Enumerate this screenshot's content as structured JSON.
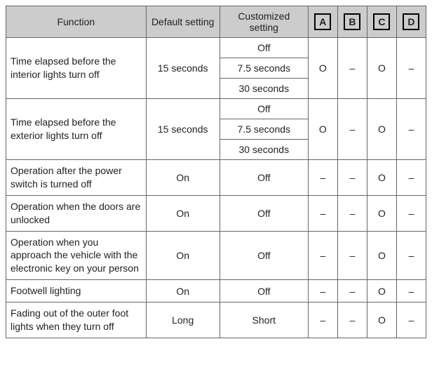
{
  "headers": {
    "func": "Function",
    "def": "Default setting",
    "cust": "Customized setting",
    "a": "A",
    "b": "B",
    "c": "C",
    "d": "D"
  },
  "marks": {
    "circle": "O",
    "dash": "–"
  },
  "rows": [
    {
      "func": "Time elapsed before the interior lights turn off",
      "def": "15 seconds",
      "cust": [
        "Off",
        "7.5 seconds",
        "30 seconds"
      ],
      "a": "O",
      "b": "–",
      "c": "O",
      "d": "–"
    },
    {
      "func": "Time elapsed before the exterior lights turn off",
      "def": "15 seconds",
      "cust": [
        "Off",
        "7.5 seconds",
        "30 seconds"
      ],
      "a": "O",
      "b": "–",
      "c": "O",
      "d": "–"
    },
    {
      "func": "Operation after the power switch is turned off",
      "def": "On",
      "cust": [
        "Off"
      ],
      "a": "–",
      "b": "–",
      "c": "O",
      "d": "–"
    },
    {
      "func": "Operation when the doors are unlocked",
      "def": "On",
      "cust": [
        "Off"
      ],
      "a": "–",
      "b": "–",
      "c": "O",
      "d": "–"
    },
    {
      "func": "Operation when you approach the vehicle with the electronic key on your person",
      "def": "On",
      "cust": [
        "Off"
      ],
      "a": "–",
      "b": "–",
      "c": "O",
      "d": "–"
    },
    {
      "func": "Footwell lighting",
      "def": "On",
      "cust": [
        "Off"
      ],
      "a": "–",
      "b": "–",
      "c": "O",
      "d": "–"
    },
    {
      "func": "Fading out of the outer foot lights when they turn off",
      "def": "Long",
      "cust": [
        "Short"
      ],
      "a": "–",
      "b": "–",
      "c": "O",
      "d": "–"
    }
  ]
}
